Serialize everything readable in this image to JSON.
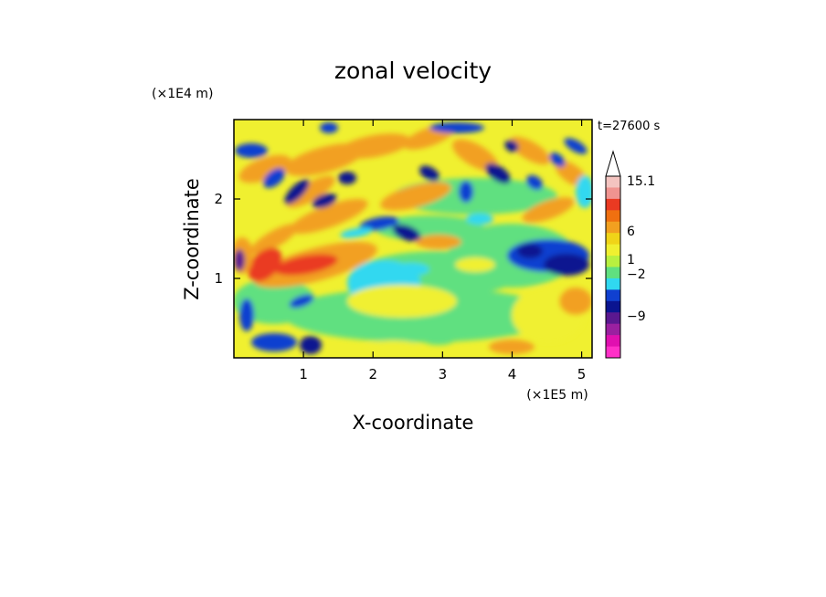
{
  "chart_data": {
    "type": "heatmap",
    "title": "zonal velocity",
    "xlabel": "X-coordinate",
    "ylabel": "Z-coordinate",
    "x_unit": "(×1E5 m)",
    "y_unit": "(×1E4 m)",
    "time_label": "t=27600 s",
    "xlim": [
      0,
      5.15
    ],
    "ylim": [
      0,
      3.0
    ],
    "x_ticks": [
      "1",
      "2",
      "3",
      "4",
      "5"
    ],
    "x_tick_values": [
      1,
      2,
      3,
      4,
      5
    ],
    "y_ticks": [
      "1",
      "2"
    ],
    "y_tick_values": [
      1,
      2
    ],
    "colorbar": {
      "labels": [
        "15.1",
        "6",
        "1",
        "−2",
        "−9"
      ],
      "label_values": [
        15.1,
        6,
        1,
        -2,
        -9
      ],
      "colors_top_to_bottom": [
        "#f4c4c0",
        "#f09490",
        "#ea3a22",
        "#f07010",
        "#f2a020",
        "#f0d418",
        "#f0f030",
        "#b8f040",
        "#60e080",
        "#30d8f0",
        "#1040d0",
        "#0a1490",
        "#5a1890",
        "#9a20a0",
        "#e010b0",
        "#ff30c8"
      ],
      "top_extend": "triangle"
    },
    "colors": {
      "strong_negative": "#0a1490",
      "negative": "#1040d0",
      "near_zero_neg": "#30d8f0",
      "near_zero": "#60e080",
      "small_positive": "#f0f030",
      "positive": "#f2a020",
      "strong_positive": "#ea3a22"
    }
  }
}
